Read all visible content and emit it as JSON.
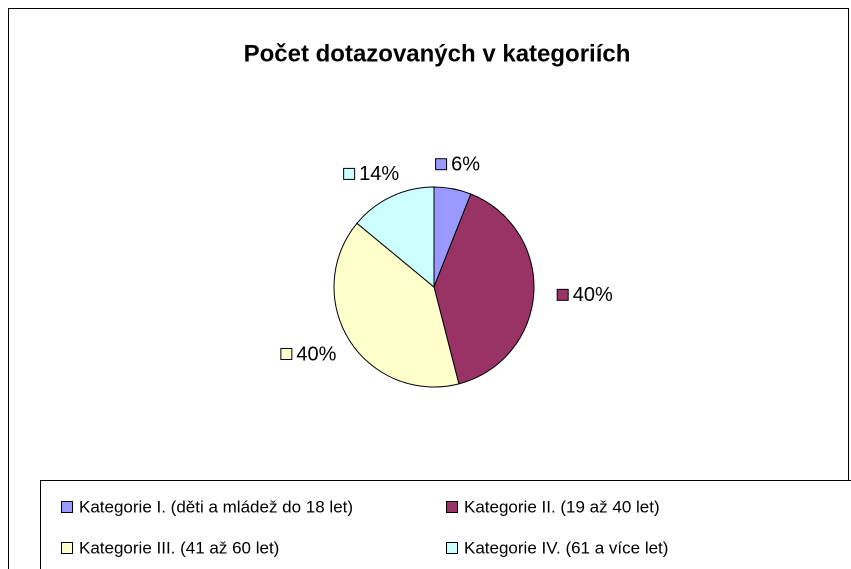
{
  "chart_data": {
    "type": "pie",
    "title": "Počet dotazovaných v kategoriích",
    "categories": [
      "Kategorie I. (děti a mládež do 18 let)",
      "Kategorie II. (19 až 40 let)",
      "Kategorie III. (41 až 60 let)",
      "Kategorie IV. (61 a více let)"
    ],
    "values": [
      6,
      40,
      40,
      14
    ],
    "value_labels": [
      "6%",
      "40%",
      "40%",
      "14%"
    ],
    "colors": [
      "#9999ff",
      "#993366",
      "#ffffcc",
      "#ccffff"
    ],
    "legend": "bottom"
  }
}
